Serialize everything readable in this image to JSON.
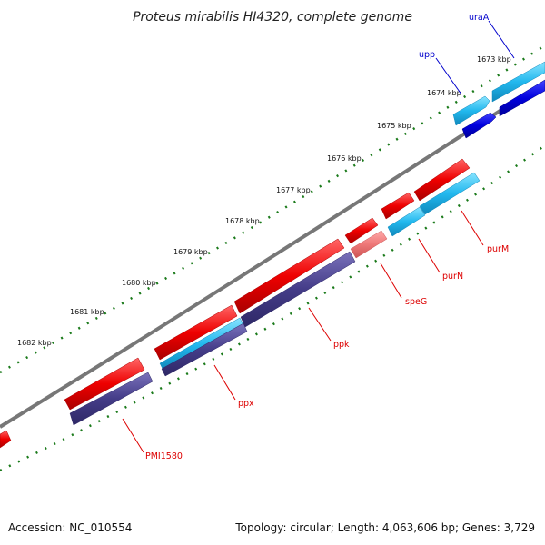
{
  "title": "Proteus mirabilis HI4320, complete genome",
  "footer": {
    "accession": "Accession: NC_010554",
    "topology": "Topology: circular; Length: 4,063,606 bp; Genes: 3,729"
  },
  "scale_ticks": [
    "1673 kbp",
    "1674 kbp",
    "1675 kbp",
    "1676 kbp",
    "1677 kbp",
    "1678 kbp",
    "1679 kbp",
    "1680 kbp",
    "1681 kbp",
    "1682 kbp"
  ],
  "genes": [
    {
      "name": "uraA",
      "label_color": "#0000cc"
    },
    {
      "name": "upp",
      "label_color": "#0000cc"
    },
    {
      "name": "purM",
      "label_color": "#dd0000"
    },
    {
      "name": "purN",
      "label_color": "#dd0000"
    },
    {
      "name": "speG",
      "label_color": "#dd0000"
    },
    {
      "name": "ppk",
      "label_color": "#dd0000"
    },
    {
      "name": "ppx",
      "label_color": "#dd0000"
    },
    {
      "name": "PMI1580",
      "label_color": "#dd0000"
    }
  ],
  "colors": {
    "gene_forward": "#ee0000",
    "gene_reverse_light": "#22b8ee",
    "gene_reverse_dark": "#0000dd",
    "gene_reverse_purple": "#443c88",
    "gene_pseudo": "#ee7777",
    "backbone": "#777777",
    "tick_dots": "#1a7a1a"
  }
}
